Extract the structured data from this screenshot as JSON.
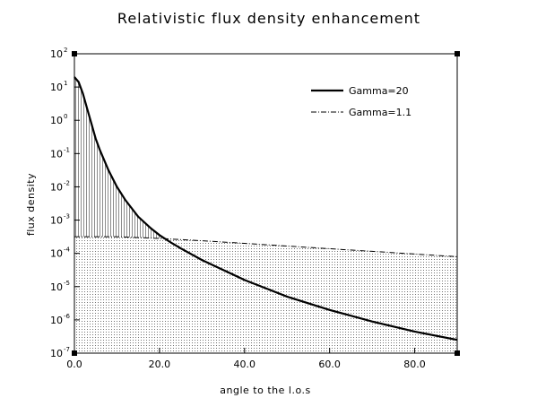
{
  "chart_data": {
    "type": "line",
    "title": "Relativistic flux density enhancement",
    "xlabel": "angle to the l.o.s",
    "ylabel": "flux density",
    "xlim": [
      0,
      90
    ],
    "ylim_log10": [
      -7,
      2
    ],
    "yscale": "log",
    "x_ticks": [
      0,
      20,
      40,
      60,
      80
    ],
    "x_tick_labels": [
      "0.0",
      "20.0",
      "40.0",
      "60.0",
      "80.0"
    ],
    "y_ticks_log10": [
      2,
      1,
      0,
      -1,
      -2,
      -3,
      -4,
      -5,
      -6,
      -7
    ],
    "y_tick_base": "10",
    "y_tick_exponents": [
      "2",
      "1",
      "0",
      "-1",
      "-2",
      "-3",
      "-4",
      "-5",
      "-6",
      "-7"
    ],
    "grid": false,
    "legend": "top-right",
    "series": [
      {
        "name": "Gamma=20",
        "style": "solid",
        "x": [
          0,
          1,
          2,
          3,
          4,
          5,
          6,
          8,
          10,
          12,
          15,
          18,
          20,
          23,
          25,
          30,
          35,
          40,
          45,
          50,
          60,
          70,
          80,
          90
        ],
        "log10_y": [
          1.3,
          1.15,
          0.8,
          0.35,
          -0.1,
          -0.55,
          -0.9,
          -1.5,
          -2.0,
          -2.4,
          -2.9,
          -3.25,
          -3.45,
          -3.7,
          -3.85,
          -4.2,
          -4.5,
          -4.8,
          -5.05,
          -5.3,
          -5.7,
          -6.05,
          -6.35,
          -6.6
        ]
      },
      {
        "name": "Gamma=1.1",
        "style": "dash-dot",
        "x": [
          0,
          10,
          20,
          30,
          40,
          50,
          60,
          70,
          80,
          90
        ],
        "log10_y": [
          -3.5,
          -3.5,
          -3.55,
          -3.62,
          -3.7,
          -3.78,
          -3.86,
          -3.94,
          -4.02,
          -4.1
        ]
      }
    ]
  }
}
